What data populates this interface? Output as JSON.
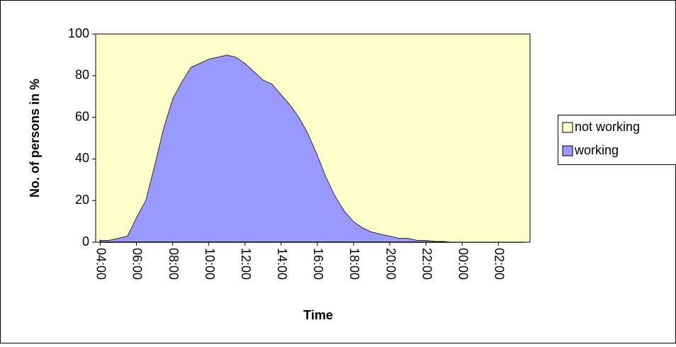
{
  "chart_data": {
    "type": "stacked_area",
    "y_label": "No. of persons in %",
    "x_label": "Time",
    "categories": [
      "04:00",
      null,
      null,
      null,
      "06:00",
      null,
      null,
      null,
      "08:00",
      null,
      null,
      null,
      "10:00",
      null,
      null,
      null,
      "12:00",
      null,
      null,
      null,
      "14:00",
      null,
      null,
      null,
      "16:00",
      null,
      null,
      null,
      "18:00",
      null,
      null,
      null,
      "20:00",
      null,
      null,
      null,
      "22:00",
      null,
      null,
      null,
      "00:00",
      null,
      null,
      null,
      "02:00",
      null,
      null,
      null
    ],
    "series": [
      {
        "name": "working",
        "color": "#9999ff",
        "values": [
          1,
          1,
          2,
          3,
          12,
          20,
          37,
          55,
          69,
          77,
          84,
          86,
          88,
          89,
          90,
          89,
          86,
          82,
          78,
          76,
          71,
          66,
          60,
          52,
          42,
          31,
          22,
          15,
          10,
          7,
          5,
          4,
          3,
          2,
          2,
          1,
          1,
          0.5,
          0.5,
          0,
          0,
          0,
          0,
          0,
          0,
          0,
          0,
          0
        ]
      },
      {
        "name": "not working",
        "color": "#ffffcc",
        "values": [
          99,
          99,
          98,
          97,
          88,
          80,
          63,
          45,
          31,
          23,
          16,
          14,
          12,
          11,
          10,
          11,
          14,
          18,
          22,
          24,
          29,
          34,
          40,
          48,
          58,
          69,
          78,
          85,
          90,
          93,
          95,
          96,
          97,
          98,
          98,
          99,
          99,
          99.5,
          99.5,
          100,
          100,
          100,
          100,
          100,
          100,
          100,
          100,
          100
        ]
      }
    ],
    "ylim": [
      0,
      100
    ],
    "yticks": [
      0,
      20,
      40,
      60,
      80,
      100
    ],
    "grid": false,
    "legend": "right"
  }
}
